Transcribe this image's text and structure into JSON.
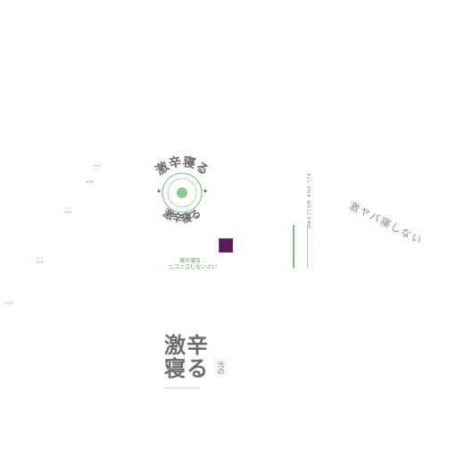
{
  "emblem": {
    "top_text": "激辛寝る",
    "bottom_text": "激辛寝る"
  },
  "center_caption": {
    "line1": "激辛寝る…",
    "line2": "ニコニコしないさい"
  },
  "vertical_label": "ALL ARE WELCOME",
  "right_label": "激ヤバ寝しない",
  "bottom_logo": {
    "line1": "激辛",
    "line2": "寝る",
    "side_text": "元の",
    "tagline": "ーーーーーーーーーー"
  },
  "fragments": [
    "…",
    "…",
    "…",
    "…",
    "…"
  ],
  "colors": {
    "accent_green": "#5aa35a",
    "purple": "#5a1a55",
    "text_gray": "#6f6f6f"
  }
}
